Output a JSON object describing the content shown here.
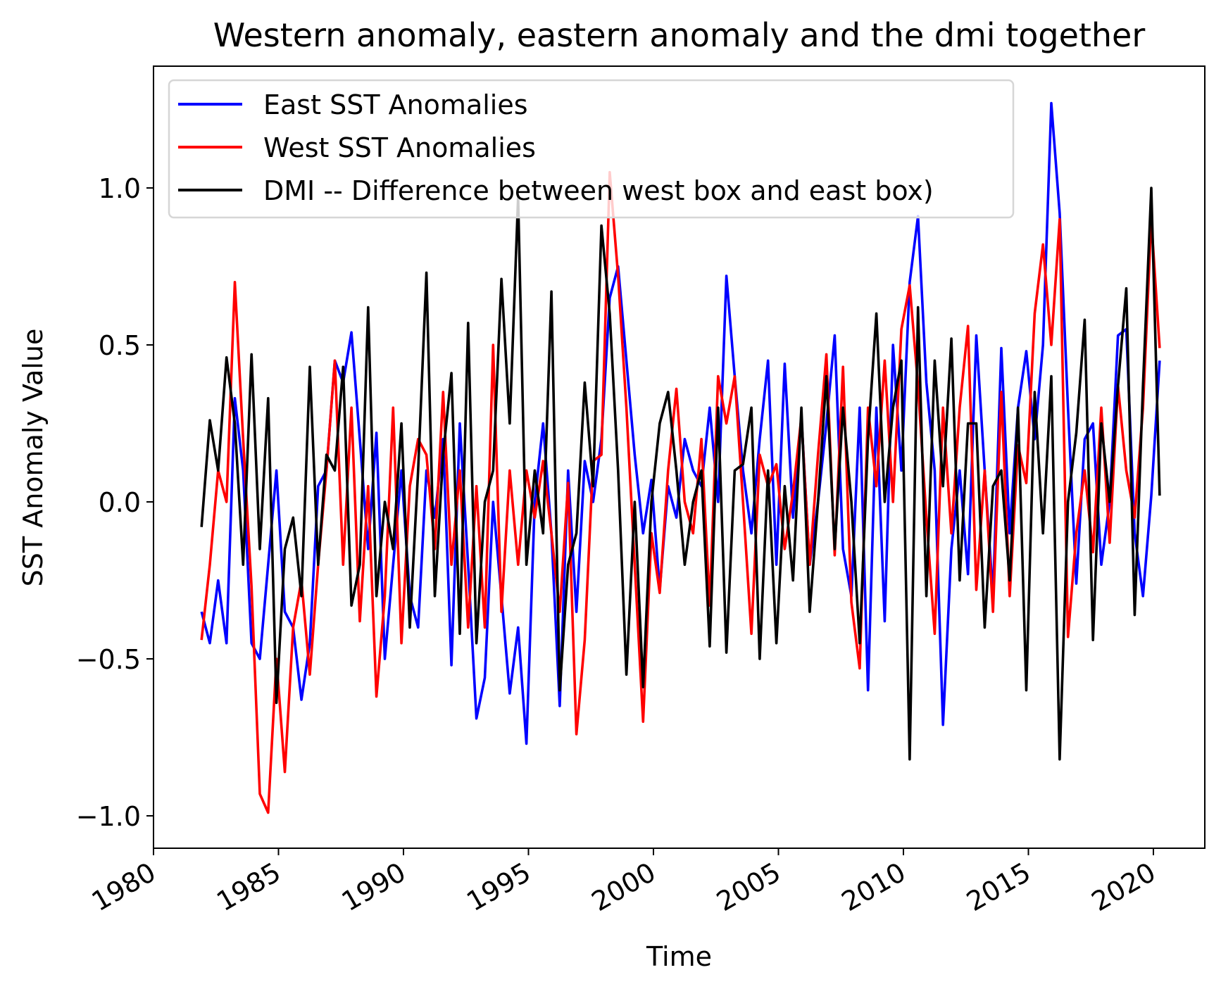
{
  "chart_data": {
    "type": "line",
    "title": "Western anomaly, eastern anomaly and the dmi together",
    "xlabel": "Time",
    "ylabel": "SST Anomaly Value",
    "xlim": [
      1980,
      2022.2
    ],
    "ylim": [
      -1.1,
      1.4
    ],
    "xticks": [
      1980,
      1985,
      1990,
      1995,
      2000,
      2005,
      2010,
      2015,
      2020
    ],
    "xtick_labels": [
      "1980",
      "1985",
      "1990",
      "1995",
      "2000",
      "2005",
      "2010",
      "2015",
      "2020"
    ],
    "yticks": [
      -1.0,
      -0.5,
      0.0,
      0.5,
      1.0
    ],
    "ytick_labels": [
      "−1.0",
      "−0.5",
      "0.0",
      "0.5",
      "1.0"
    ],
    "legend_position": "top-left",
    "grid": false,
    "x_start": 1981.92,
    "x_step": 0.3333,
    "series": [
      {
        "name": "East SST Anomalies",
        "color": "#0000ff",
        "values": [
          -0.35,
          -0.45,
          -0.25,
          -0.45,
          0.33,
          0.1,
          -0.45,
          -0.5,
          -0.2,
          0.1,
          -0.35,
          -0.4,
          -0.63,
          -0.45,
          0.05,
          0.1,
          0.45,
          0.38,
          0.54,
          0.2,
          -0.15,
          0.22,
          -0.5,
          -0.2,
          0.1,
          -0.3,
          -0.4,
          0.1,
          -0.05,
          0.2,
          -0.52,
          0.25,
          -0.2,
          -0.69,
          -0.56,
          0.0,
          -0.3,
          -0.61,
          -0.4,
          -0.77,
          0.0,
          0.25,
          -0.1,
          -0.65,
          0.1,
          -0.35,
          0.13,
          0.0,
          0.2,
          0.65,
          0.75,
          0.45,
          0.15,
          -0.1,
          0.07,
          -0.28,
          0.05,
          -0.05,
          0.2,
          0.1,
          0.05,
          0.3,
          0.0,
          0.72,
          0.4,
          0.1,
          -0.1,
          0.2,
          0.45,
          -0.2,
          0.44,
          -0.05,
          0.27,
          -0.2,
          0.0,
          0.25,
          0.53,
          -0.15,
          -0.3,
          0.3,
          -0.6,
          0.3,
          -0.38,
          0.5,
          0.1,
          0.7,
          0.91,
          0.38,
          0.1,
          -0.71,
          -0.15,
          0.1,
          -0.23,
          0.53,
          0.1,
          -0.3,
          0.49,
          -0.1,
          0.3,
          0.48,
          0.2,
          0.5,
          1.27,
          0.92,
          0.3,
          -0.26,
          0.2,
          0.25,
          -0.2,
          0.0,
          0.53,
          0.55,
          -0.1,
          -0.3,
          0.02,
          0.45
        ]
      },
      {
        "name": "West SST Anomalies",
        "color": "#ff0000",
        "values": [
          -0.44,
          -0.2,
          0.1,
          0.0,
          0.7,
          0.2,
          -0.27,
          -0.93,
          -0.99,
          -0.5,
          -0.86,
          -0.4,
          -0.25,
          -0.55,
          -0.2,
          0.1,
          0.45,
          -0.2,
          0.3,
          -0.38,
          0.05,
          -0.62,
          -0.3,
          0.3,
          -0.45,
          0.05,
          0.2,
          0.15,
          -0.15,
          0.35,
          -0.2,
          0.1,
          -0.4,
          0.05,
          -0.4,
          0.5,
          -0.35,
          0.1,
          -0.2,
          0.1,
          -0.05,
          0.13,
          -0.1,
          -0.35,
          0.06,
          -0.74,
          -0.44,
          0.13,
          0.15,
          1.05,
          0.72,
          0.3,
          -0.2,
          -0.7,
          -0.1,
          -0.29,
          0.1,
          0.36,
          0.0,
          -0.1,
          0.2,
          -0.33,
          0.4,
          0.25,
          0.4,
          0.0,
          -0.42,
          0.15,
          0.05,
          0.12,
          -0.15,
          0.03,
          0.27,
          -0.2,
          0.15,
          0.47,
          -0.17,
          0.43,
          -0.32,
          -0.53,
          0.3,
          0.05,
          0.45,
          0.0,
          0.55,
          0.69,
          0.37,
          -0.05,
          -0.42,
          0.3,
          -0.1,
          0.3,
          0.56,
          -0.28,
          0.1,
          -0.35,
          0.35,
          -0.3,
          0.18,
          0.06,
          0.6,
          0.82,
          0.5,
          0.9,
          -0.43,
          -0.1,
          0.1,
          -0.16,
          0.3,
          -0.13,
          0.37,
          0.1,
          -0.05,
          0.3,
          0.9,
          0.49
        ]
      },
      {
        "name": "DMI -- Difference between west box and east box)",
        "color": "#000000",
        "values": [
          -0.08,
          0.26,
          0.1,
          0.46,
          0.25,
          -0.2,
          0.47,
          -0.15,
          0.33,
          -0.64,
          -0.15,
          -0.05,
          -0.3,
          0.43,
          -0.2,
          0.15,
          0.1,
          0.43,
          -0.33,
          -0.2,
          0.62,
          -0.3,
          0.0,
          -0.15,
          0.25,
          -0.4,
          0.1,
          0.73,
          -0.3,
          0.15,
          0.41,
          -0.42,
          0.57,
          -0.45,
          0.0,
          0.1,
          0.71,
          0.25,
          0.97,
          -0.2,
          0.1,
          -0.1,
          0.67,
          -0.6,
          -0.2,
          -0.1,
          0.38,
          0.05,
          0.88,
          0.6,
          0.1,
          -0.55,
          0.0,
          -0.59,
          0.0,
          0.25,
          0.35,
          0.1,
          -0.2,
          0.0,
          0.1,
          -0.46,
          0.3,
          -0.48,
          0.1,
          0.12,
          0.3,
          -0.5,
          0.1,
          -0.45,
          0.05,
          -0.25,
          0.3,
          -0.35,
          0.0,
          0.4,
          -0.15,
          0.3,
          0.0,
          -0.45,
          0.2,
          0.6,
          0.0,
          0.3,
          0.45,
          -0.82,
          0.62,
          -0.3,
          0.45,
          0.05,
          0.52,
          -0.25,
          0.25,
          0.25,
          -0.4,
          0.05,
          0.1,
          -0.25,
          0.3,
          -0.6,
          0.35,
          -0.1,
          0.4,
          -0.82,
          0.0,
          0.22,
          0.58,
          -0.44,
          0.25,
          0.0,
          0.37,
          0.68,
          -0.36,
          0.37,
          1.0,
          0.02
        ]
      }
    ]
  }
}
